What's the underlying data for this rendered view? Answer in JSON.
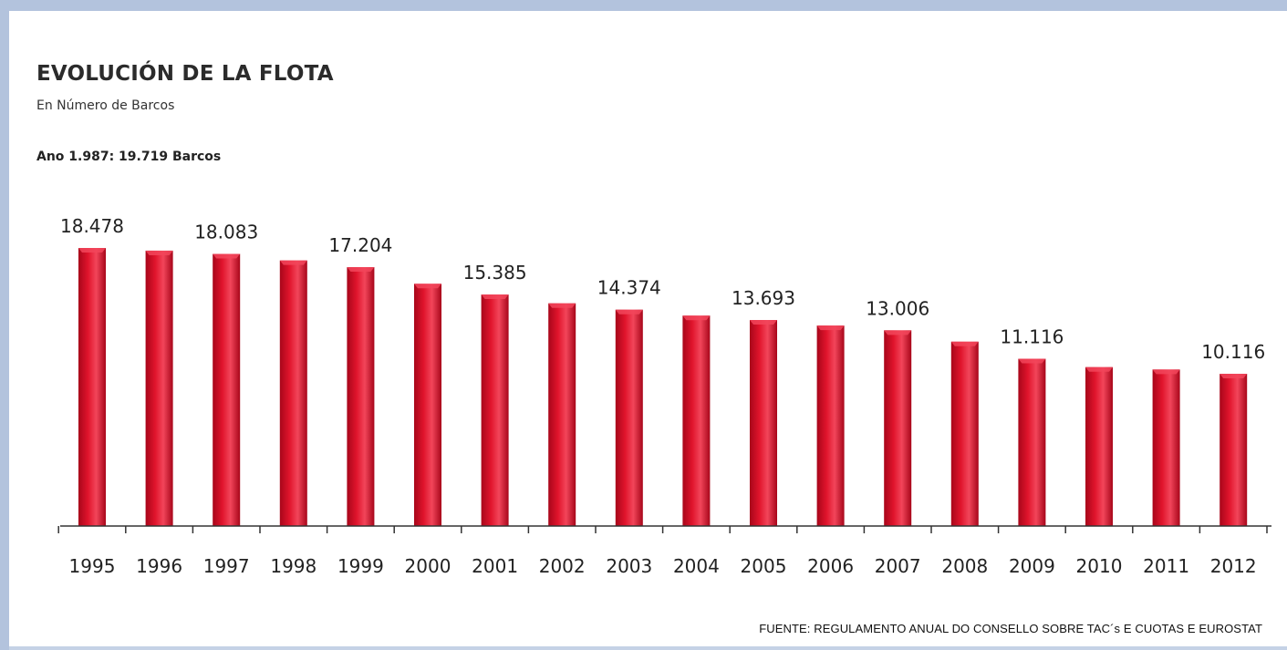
{
  "header": {
    "title": "EVOLUCIÓN DE LA FLOTA",
    "subtitle": "En Número de Barcos",
    "note": "Ano 1.987: 19.719 Barcos"
  },
  "footer": {
    "source": "FUENTE: REGULAMENTO ANUAL DO CONSELLO SOBRE TAC´s E CUOTAS E EUROSTAT"
  },
  "colors": {
    "bar": "#e0142c",
    "bar_dark": "#a8061a",
    "bar_light": "#f2455a",
    "axis": "#333333",
    "frame": "#b3c3dd"
  },
  "chart_data": {
    "type": "bar",
    "title": "EVOLUCIÓN DE LA FLOTA",
    "subtitle": "En Número de Barcos",
    "xlabel": "",
    "ylabel": "",
    "ylim": [
      0,
      18478
    ],
    "grid": false,
    "legend": "none",
    "categories": [
      "1995",
      "1996",
      "1997",
      "1998",
      "1999",
      "2000",
      "2001",
      "2002",
      "2003",
      "2004",
      "2005",
      "2006",
      "2007",
      "2008",
      "2009",
      "2010",
      "2011",
      "2012"
    ],
    "values": [
      18478,
      18300,
      18083,
      17650,
      17204,
      16100,
      15385,
      14800,
      14374,
      13980,
      13693,
      13320,
      13006,
      12250,
      11116,
      10560,
      10400,
      10116
    ],
    "data_labels": [
      "18.478",
      "",
      "18.083",
      "",
      "17.204",
      "",
      "15.385",
      "",
      "14.374",
      "",
      "13.693",
      "",
      "13.006",
      "",
      "11.116",
      "",
      "",
      "10.116"
    ]
  }
}
